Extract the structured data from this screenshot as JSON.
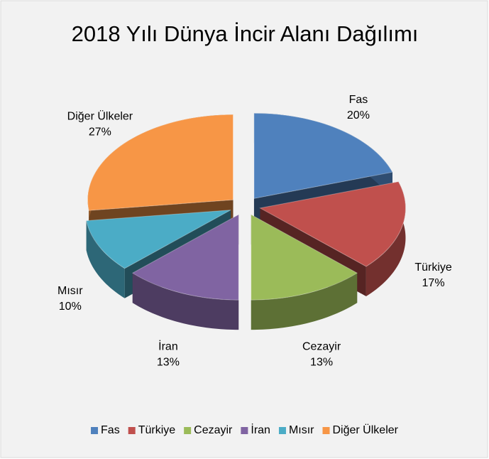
{
  "chart_data": {
    "type": "pie",
    "title": "2018 Yılı Dünya İncir Alanı Dağılımı",
    "categories": [
      "Fas",
      "Türkiye",
      "Cezayir",
      "İran",
      "Mısır",
      "Diğer Ülkeler"
    ],
    "values": [
      20,
      17,
      13,
      13,
      10,
      27
    ],
    "value_labels": [
      "20%",
      "17%",
      "13%",
      "13%",
      "10%",
      "27%"
    ],
    "colors": [
      "#4f81bd",
      "#c0504d",
      "#9bbb59",
      "#8064a2",
      "#4bacc6",
      "#f79646"
    ],
    "legend": "bottom"
  }
}
